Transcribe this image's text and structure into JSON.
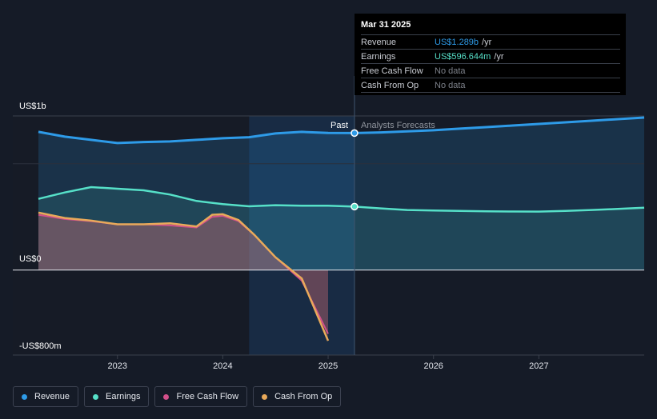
{
  "tooltip": {
    "date": "Mar 31 2025",
    "rows": [
      {
        "name": "Revenue",
        "value": "US$1.289b",
        "unit": "/yr",
        "color": "#2e9be8"
      },
      {
        "name": "Earnings",
        "value": "US$596.644m",
        "unit": "/yr",
        "color": "#56e0c8"
      },
      {
        "name": "Free Cash Flow",
        "value": "No data",
        "unit": ""
      },
      {
        "name": "Cash From Op",
        "value": "No data",
        "unit": ""
      }
    ]
  },
  "legend": [
    {
      "label": "Revenue",
      "color": "#2e9be8"
    },
    {
      "label": "Earnings",
      "color": "#56e0c8"
    },
    {
      "label": "Free Cash Flow",
      "color": "#d2508a"
    },
    {
      "label": "Cash From Op",
      "color": "#e8a95a"
    }
  ],
  "chart_data": {
    "type": "line",
    "y_axis_labels": [
      "US$1b",
      "US$0",
      "-US$800m"
    ],
    "x_tick_labels": [
      "2023",
      "2024",
      "2025",
      "2026",
      "2027"
    ],
    "divider_labels": {
      "past": "Past",
      "forecast": "Analysts Forecasts"
    },
    "ylim": [
      -800,
      1450
    ],
    "xlim": [
      2022.25,
      2028.0
    ],
    "divider_x": 2025.25,
    "highlight_range": [
      2024.25,
      2025.25
    ],
    "series": [
      {
        "name": "Revenue",
        "color": "#2e9be8",
        "x": [
          2022.25,
          2022.5,
          2022.75,
          2023.0,
          2023.25,
          2023.5,
          2023.75,
          2024.0,
          2024.25,
          2024.5,
          2024.75,
          2025.0,
          2025.25,
          2025.5,
          2025.75,
          2026.0,
          2026.25,
          2026.5,
          2026.75,
          2027.0,
          2027.25,
          2027.5,
          2027.75,
          2028.0
        ],
        "values": [
          1300,
          1255,
          1225,
          1195,
          1205,
          1210,
          1225,
          1240,
          1250,
          1285,
          1300,
          1290,
          1289,
          1295,
          1305,
          1315,
          1330,
          1345,
          1360,
          1375,
          1390,
          1405,
          1420,
          1435
        ]
      },
      {
        "name": "Earnings",
        "color": "#56e0c8",
        "x": [
          2022.25,
          2022.5,
          2022.75,
          2023.0,
          2023.25,
          2023.5,
          2023.75,
          2024.0,
          2024.25,
          2024.5,
          2024.75,
          2025.0,
          2025.25,
          2025.5,
          2025.75,
          2026.0,
          2026.25,
          2026.5,
          2026.75,
          2027.0,
          2027.25,
          2027.5,
          2027.75,
          2028.0
        ],
        "values": [
          670,
          730,
          780,
          765,
          750,
          710,
          650,
          620,
          600,
          610,
          605,
          605,
          597,
          580,
          565,
          560,
          556,
          553,
          551,
          550,
          556,
          565,
          575,
          587
        ]
      },
      {
        "name": "Free Cash Flow",
        "color": "#d2508a",
        "x": [
          2022.25,
          2022.5,
          2022.75,
          2023.0,
          2023.25,
          2023.5,
          2023.75,
          2023.9,
          2024.0,
          2024.15,
          2024.3,
          2024.5,
          2024.75,
          2025.0
        ],
        "values": [
          520,
          480,
          460,
          430,
          430,
          420,
          400,
          500,
          510,
          460,
          330,
          120,
          -100,
          -600
        ]
      },
      {
        "name": "Cash From Op",
        "color": "#e8a95a",
        "x": [
          2022.25,
          2022.5,
          2022.75,
          2023.0,
          2023.25,
          2023.5,
          2023.75,
          2023.9,
          2024.0,
          2024.15,
          2024.3,
          2024.5,
          2024.75,
          2025.0
        ],
        "values": [
          540,
          490,
          465,
          430,
          430,
          440,
          410,
          520,
          525,
          470,
          330,
          120,
          -80,
          -665
        ]
      }
    ]
  }
}
